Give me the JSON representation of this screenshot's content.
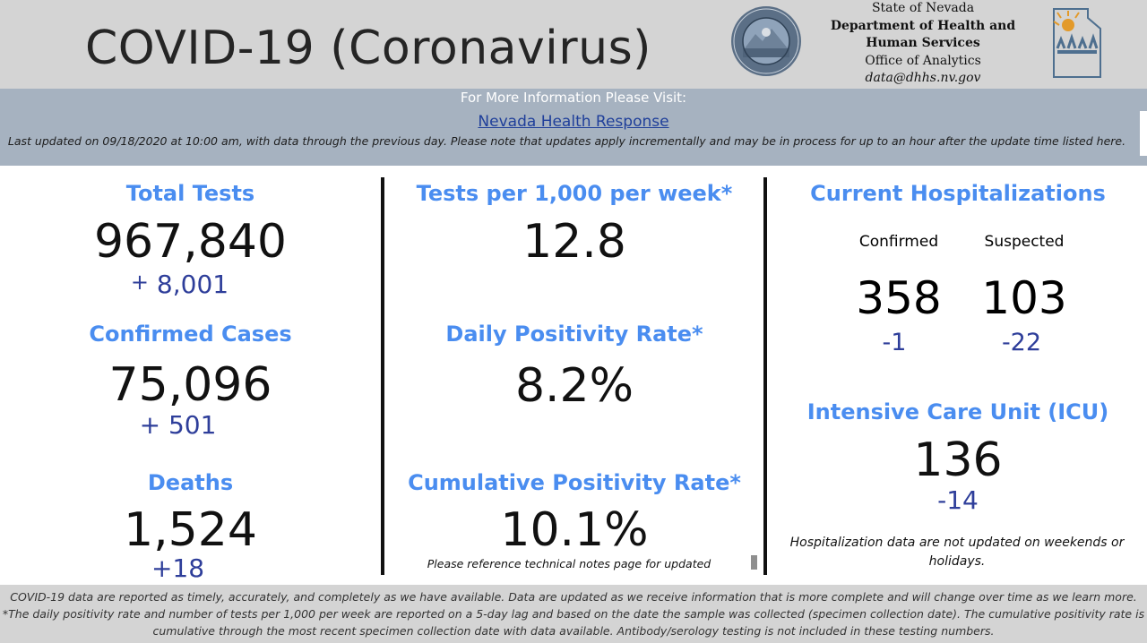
{
  "header": {
    "title": "COVID-19 (Coronavirus)",
    "agency": {
      "line1": "State of Nevada",
      "line2": "Department of Health and",
      "line3": "Human Services",
      "line4": "Office of Analytics",
      "email": "data@dhhs.nv.gov"
    },
    "seal_icon": "nevada-state-seal-icon",
    "logo_icon": "dhhs-logo-icon"
  },
  "banner": {
    "visit_text": "For More Information Please Visit:",
    "link_text": "Nevada Health Response",
    "updated_text": "Last updated on 09/18/2020 at 10:00 am, with data through the previous day.  Please note that updates apply incrementally and may be in process for up to an hour after the update time listed here."
  },
  "left": {
    "total_tests": {
      "label": "Total Tests",
      "value": "967,840",
      "delta_sign": "+",
      "delta_value": "8,001"
    },
    "confirmed_cases": {
      "label": "Confirmed Cases",
      "value": "75,096",
      "delta": "+ 501"
    },
    "deaths": {
      "label": "Deaths",
      "value": "1,524",
      "delta": "+18"
    }
  },
  "middle": {
    "tests_per_1000": {
      "label": "Tests per 1,000 per week*",
      "value": "12.8"
    },
    "daily_positivity": {
      "label": "Daily Positivity Rate*",
      "value": "8.2%"
    },
    "cumulative_positivity": {
      "label": "Cumulative Positivity Rate*",
      "value": "10.1%",
      "note": "Please reference technical notes page for updated"
    }
  },
  "right": {
    "hospitalizations": {
      "label": "Current Hospitalizations",
      "confirmed_label": "Confirmed",
      "suspected_label": "Suspected",
      "confirmed_value": "358",
      "suspected_value": "103",
      "confirmed_delta": "-1",
      "suspected_delta": "-22"
    },
    "icu": {
      "label": "Intensive Care Unit (ICU)",
      "value": "136",
      "delta": "-14"
    },
    "note": "Hospitalization data are not updated on weekends or holidays."
  },
  "footer": {
    "line1": "COVID-19 data are reported as timely, accurately, and completely as we have available.  Data are updated as we receive information that is more complete and will change over time as we learn more.",
    "line2": "*The daily positivity rate and number of tests per 1,000 per week are reported on a 5-day lag and based on the date the sample was collected (specimen collection date).  The cumulative positivity rate is cumulative through the most recent specimen collection date with data available.  Antibody/serology testing is not included in these testing numbers."
  },
  "colors": {
    "heading": "#4a8df0",
    "delta": "#2e3e9a",
    "header_bg": "#d4d4d4",
    "banner_bg": "#a6b2c0"
  }
}
